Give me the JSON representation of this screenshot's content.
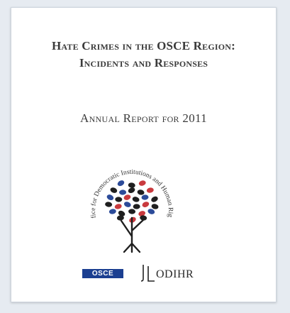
{
  "cover": {
    "title_line1": "Hate Crimes in the OSCE Region:",
    "title_line2": "Incidents and Responses",
    "subtitle": "Annual Report for 2011",
    "emblem_text": "Office for Democratic Institutions and Human Rights",
    "logo_left": "OSCE",
    "logo_right": "ODIHR"
  },
  "colors": {
    "red": "#c93a3e",
    "blue": "#2c4b99",
    "dark": "#1f1f1f",
    "osce_blue": "#1b3f91"
  }
}
